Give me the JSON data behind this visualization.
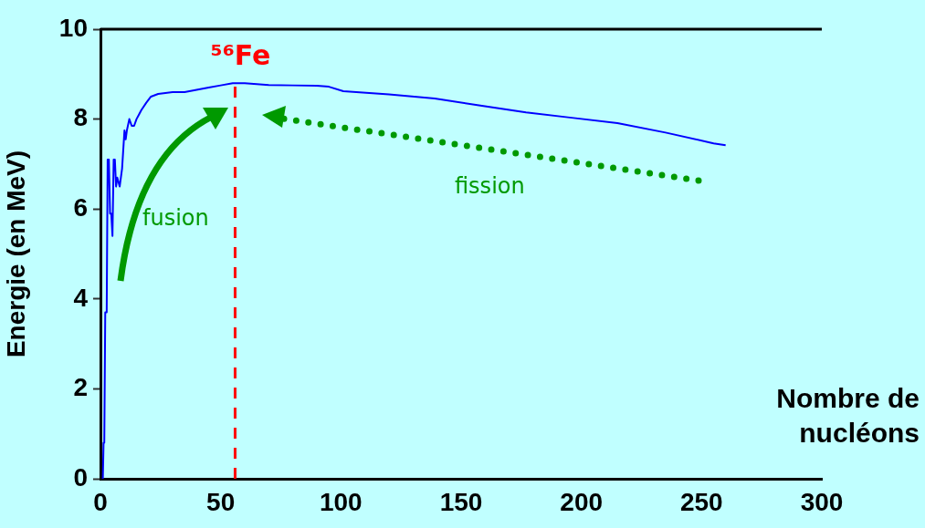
{
  "chart_data": {
    "type": "line",
    "xlabel": "Nombre de nucléons",
    "ylabel": "Energie (en MeV)",
    "xlim": [
      0,
      300
    ],
    "xticks": [
      0,
      50,
      100,
      150,
      200,
      250,
      300
    ],
    "ylim": [
      0,
      10
    ],
    "yticks": [
      0,
      2,
      4,
      6,
      8,
      10
    ],
    "grid": false,
    "legend": false,
    "marker": "none",
    "line_style": "solid",
    "series": [
      {
        "color": "#0000ff",
        "x": [
          1,
          1.3,
          1.6,
          2,
          2.6,
          3,
          3.5,
          4,
          4.5,
          5,
          5.5,
          6,
          6.5,
          7,
          8,
          9,
          10,
          10.5,
          11,
          12,
          13,
          14,
          15,
          16,
          17,
          19,
          21,
          24,
          30,
          35,
          40,
          45,
          50,
          55,
          60,
          65,
          70,
          80,
          90,
          95,
          101,
          120,
          139,
          158,
          177,
          196,
          215,
          235,
          255,
          260
        ],
        "values": [
          0,
          0.8,
          0.8,
          3.7,
          3.7,
          7.1,
          7.1,
          5.9,
          5.9,
          5.4,
          7.1,
          7.1,
          6.5,
          6.7,
          6.5,
          6.9,
          7.75,
          7.55,
          7.75,
          8.0,
          7.85,
          7.85,
          8.0,
          8.1,
          8.2,
          8.36,
          8.5,
          8.56,
          8.6,
          8.6,
          8.65,
          8.7,
          8.75,
          8.8,
          8.8,
          8.78,
          8.76,
          8.75,
          8.74,
          8.72,
          8.62,
          8.55,
          8.46,
          8.3,
          8.15,
          8.03,
          7.91,
          7.7,
          7.46,
          7.42
        ]
      }
    ],
    "ref_lines": [
      {
        "axis": "x",
        "value": 56,
        "label": "⁵⁶Fe",
        "color": "#ff0000",
        "line_style": "dashed"
      }
    ],
    "annotations": [
      "fusion",
      "fission"
    ]
  }
}
